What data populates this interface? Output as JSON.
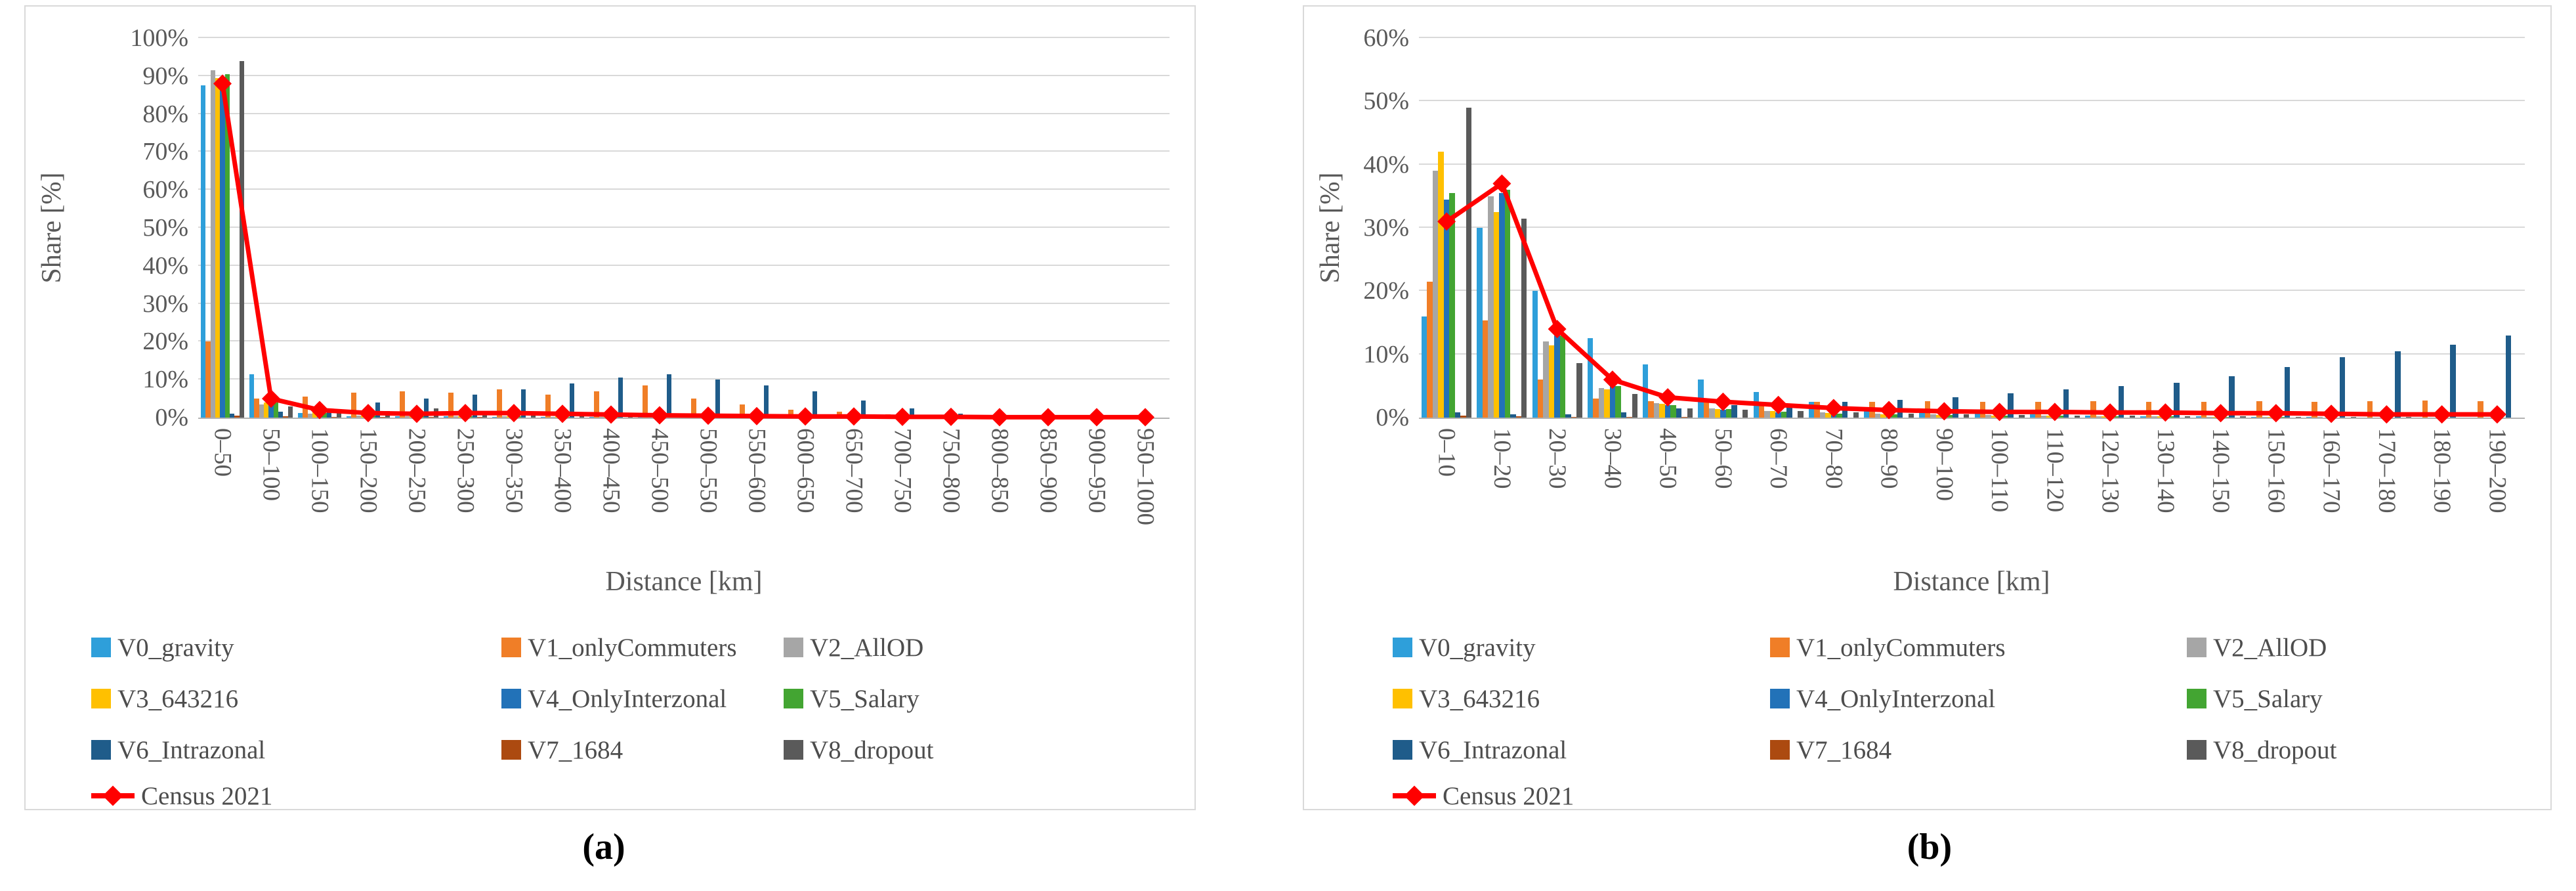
{
  "figure": {
    "captions": {
      "a": "(a)",
      "b": "(b)"
    }
  },
  "palette": {
    "gridline": "#d9d9d9",
    "axis_line": "#b3b3b3",
    "tick_text": "#595959",
    "legend_text": "#4d4d4d",
    "panel_border": "#d9d9d9",
    "census_red": "#FF0000"
  },
  "chart_data": [
    {
      "type": "bar",
      "subtype": "grouped-bars-with-line-overlay",
      "title": "",
      "ylabel": "Share [%]",
      "xlabel": "Distance [km]",
      "ylim": [
        0,
        100
      ],
      "ystep": 10,
      "ytick_labels": [
        "0%",
        "10%",
        "20%",
        "30%",
        "40%",
        "50%",
        "60%",
        "70%",
        "80%",
        "90%",
        "100%"
      ],
      "grid": true,
      "legend_position": "bottom",
      "categories": [
        "0–50",
        "50–100",
        "100–150",
        "150–200",
        "200–250",
        "250–300",
        "300–350",
        "350–400",
        "400–450",
        "450–500",
        "500–550",
        "550–600",
        "600–650",
        "650–700",
        "700–750",
        "750–800",
        "800–850",
        "850–900",
        "900–950",
        "950–1000"
      ],
      "series": [
        {
          "name": "V0_gravity",
          "color": "#2E9FDA",
          "values": [
            87.5,
            11.5,
            1.2,
            0.4,
            0.3,
            0.3,
            0.2,
            0.2,
            0.1,
            0.1,
            0.1,
            0.1,
            0,
            0,
            0,
            0,
            0,
            0,
            0,
            0
          ]
        },
        {
          "name": "V1_onlyCommuters",
          "color": "#F07E27",
          "values": [
            20,
            5,
            5.5,
            6.5,
            7,
            6.5,
            7.5,
            6,
            7,
            8.5,
            5,
            3.5,
            2,
            1.5,
            0.8,
            0.3,
            0.2,
            0.1,
            0.1,
            0
          ]
        },
        {
          "name": "V2_AllOD",
          "color": "#A6A6A6",
          "values": [
            91.5,
            3.5,
            1,
            0.5,
            0.4,
            0.3,
            0.3,
            0.2,
            0.2,
            0.2,
            0.1,
            0.1,
            0.1,
            0,
            0,
            0,
            0,
            0,
            0,
            0
          ]
        },
        {
          "name": "V3_643216",
          "color": "#FFC000",
          "values": [
            89.5,
            4,
            1.5,
            0.6,
            0.5,
            0.4,
            0.3,
            0.3,
            0.2,
            0.2,
            0.2,
            0.1,
            0.1,
            0,
            0,
            0,
            0,
            0,
            0,
            0
          ]
        },
        {
          "name": "V4_OnlyInterzonal",
          "color": "#2272B8",
          "values": [
            88,
            5.5,
            1.5,
            0.7,
            0.5,
            0.4,
            0.4,
            0.3,
            0.3,
            0.2,
            0.2,
            0.2,
            0.1,
            0.1,
            0.1,
            0,
            0,
            0,
            0,
            0
          ]
        },
        {
          "name": "V5_Salary",
          "color": "#43A532",
          "values": [
            90.5,
            4,
            1.2,
            0.5,
            0.4,
            0.3,
            0.3,
            0.2,
            0.2,
            0.2,
            0.1,
            0.1,
            0.1,
            0,
            0,
            0,
            0,
            0,
            0,
            0
          ]
        },
        {
          "name": "V6_Intrazonal",
          "color": "#1F5C8A",
          "values": [
            1,
            1.5,
            2.5,
            4,
            5,
            6,
            7.5,
            9,
            10.5,
            11.5,
            10,
            8.5,
            7,
            4.5,
            2.5,
            1,
            0.5,
            0.2,
            0.1,
            0
          ]
        },
        {
          "name": "V7_1684",
          "color": "#AC4A10",
          "values": [
            0.5,
            0.3,
            0.2,
            0.1,
            0.1,
            0.1,
            0,
            0,
            0,
            0,
            0,
            0,
            0,
            0,
            0,
            0,
            0,
            0,
            0,
            0
          ]
        },
        {
          "name": "V8_dropout",
          "color": "#5A5A5A",
          "values": [
            94,
            3,
            2.2,
            1.8,
            2.5,
            1.2,
            0.8,
            0.5,
            0.4,
            0.3,
            0.2,
            0.2,
            0.1,
            0.1,
            0,
            0,
            0,
            0,
            0,
            0
          ]
        }
      ],
      "line": {
        "name": "Census 2021",
        "color": "#FF0000",
        "values": [
          88,
          5,
          2,
          1.2,
          1,
          1.2,
          1.2,
          1,
          0.8,
          0.6,
          0.5,
          0.4,
          0.3,
          0.3,
          0.2,
          0.2,
          0.1,
          0.1,
          0.1,
          0.1
        ]
      }
    },
    {
      "type": "bar",
      "subtype": "grouped-bars-with-line-overlay",
      "title": "",
      "ylabel": "Share [%]",
      "xlabel": "Distance [km]",
      "ylim": [
        0,
        60
      ],
      "ystep": 10,
      "ytick_labels": [
        "0%",
        "10%",
        "20%",
        "30%",
        "40%",
        "50%",
        "60%"
      ],
      "grid": true,
      "legend_position": "bottom",
      "categories": [
        "0–10",
        "10–20",
        "20–30",
        "30–40",
        "40–50",
        "50–60",
        "60–70",
        "70–80",
        "80–90",
        "90–100",
        "100–110",
        "110–120",
        "120–130",
        "130–140",
        "140–150",
        "150–160",
        "160–170",
        "170–180",
        "180–190",
        "190–200"
      ],
      "series": [
        {
          "name": "V0_gravity",
          "color": "#2E9FDA",
          "values": [
            16,
            30,
            20,
            12.6,
            8.4,
            6,
            4,
            2.5,
            1.5,
            1,
            0.7,
            0.5,
            0.3,
            0.2,
            0.2,
            0.1,
            0.1,
            0,
            0,
            0
          ]
        },
        {
          "name": "V1_onlyCommuters",
          "color": "#F07E27",
          "values": [
            21.5,
            15.4,
            6,
            3,
            2.6,
            2.6,
            2.5,
            2.5,
            2.5,
            2.6,
            2.5,
            2.5,
            2.6,
            2.5,
            2.5,
            2.6,
            2.5,
            2.6,
            2.7,
            2.6
          ]
        },
        {
          "name": "V2_AllOD",
          "color": "#A6A6A6",
          "values": [
            39,
            35,
            12,
            4.7,
            2.3,
            1.5,
            1,
            0.8,
            0.6,
            0.5,
            0.4,
            0.3,
            0.2,
            0.2,
            0.1,
            0.1,
            0.1,
            0,
            0,
            0
          ]
        },
        {
          "name": "V3_643216",
          "color": "#FFC000",
          "values": [
            42,
            32.5,
            11.4,
            4.5,
            2.2,
            1.4,
            1,
            0.7,
            0.5,
            0.4,
            0.3,
            0.3,
            0.2,
            0.2,
            0.1,
            0.1,
            0,
            0,
            0,
            0
          ]
        },
        {
          "name": "V4_OnlyInterzonal",
          "color": "#2272B8",
          "values": [
            34.5,
            35.5,
            13,
            5,
            2,
            1.2,
            0.8,
            0.6,
            0.5,
            0.4,
            0.3,
            0.3,
            0.2,
            0.2,
            0.1,
            0.1,
            0.1,
            0,
            0,
            0
          ]
        },
        {
          "name": "V5_Salary",
          "color": "#43A532",
          "values": [
            35.5,
            36,
            13,
            5,
            2,
            1.3,
            0.9,
            0.6,
            0.5,
            0.4,
            0.3,
            0.3,
            0.2,
            0.2,
            0.1,
            0.1,
            0,
            0,
            0,
            0
          ]
        },
        {
          "name": "V6_Intrazonal",
          "color": "#1F5C8A",
          "values": [
            0.8,
            0.5,
            0.5,
            0.8,
            1.5,
            2,
            2.2,
            2.5,
            2.8,
            3.2,
            3.8,
            4.5,
            5,
            5.5,
            6.5,
            8,
            9.5,
            10.5,
            11.5,
            13
          ]
        },
        {
          "name": "V7_1684",
          "color": "#AC4A10",
          "values": [
            0.3,
            0.2,
            0.1,
            0.1,
            0.1,
            0,
            0,
            0,
            0,
            0,
            0,
            0,
            0,
            0,
            0,
            0,
            0,
            0,
            0,
            0
          ]
        },
        {
          "name": "V8_dropout",
          "color": "#5A5A5A",
          "values": [
            49,
            31.5,
            8.6,
            3.7,
            1.5,
            1.2,
            1,
            0.8,
            0.6,
            0.5,
            0.4,
            0.3,
            0.3,
            0.2,
            0.2,
            0.1,
            0.1,
            0.1,
            0,
            0
          ]
        }
      ],
      "line": {
        "name": "Census 2021",
        "color": "#FF0000",
        "values": [
          31,
          37,
          14,
          6,
          3.2,
          2.5,
          2,
          1.5,
          1.2,
          1,
          0.9,
          0.9,
          0.8,
          0.8,
          0.7,
          0.7,
          0.6,
          0.5,
          0.5,
          0.5
        ]
      }
    }
  ]
}
